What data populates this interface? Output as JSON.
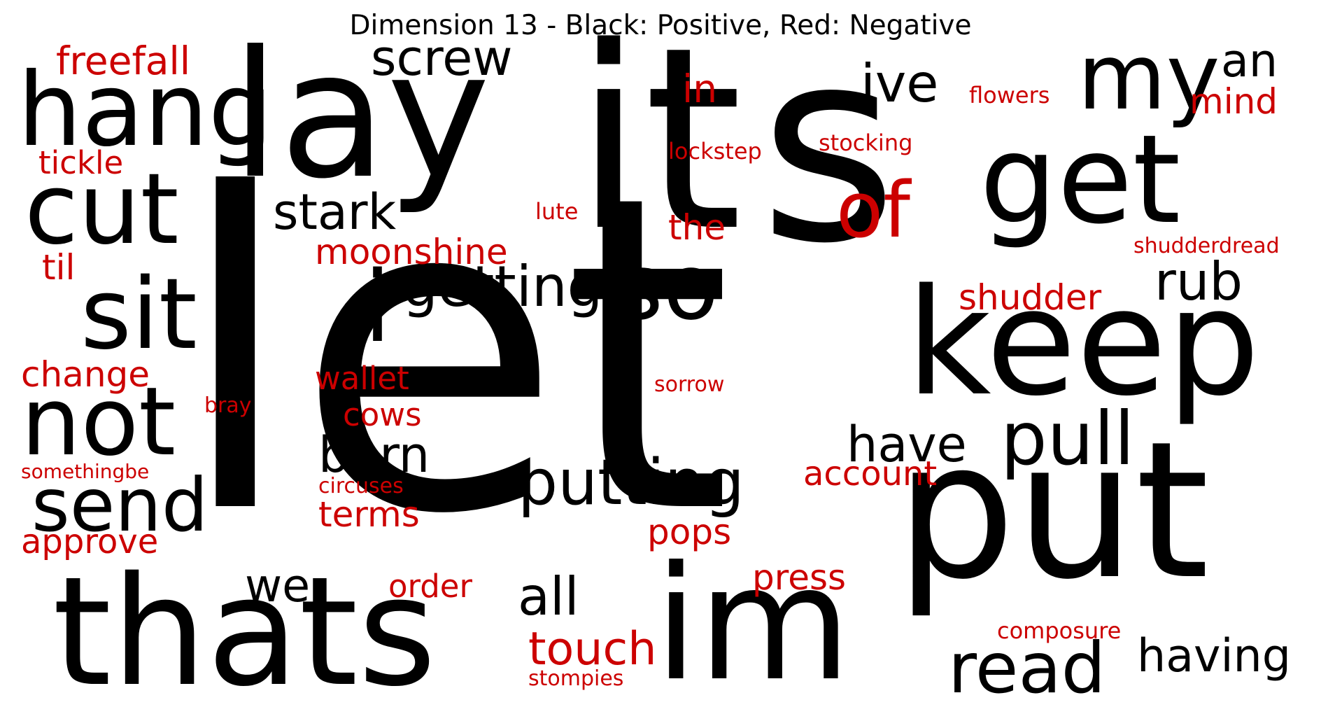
{
  "title": "Dimension 13 - Black: Positive, Red: Negative",
  "colors": {
    "positive": "#000000",
    "negative": "#cc0000"
  },
  "words": [
    {
      "text": "let",
      "sign": "positive"
    },
    {
      "text": "s",
      "sign": "positive"
    },
    {
      "text": "it",
      "sign": "positive"
    },
    {
      "text": "lay",
      "sign": "positive"
    },
    {
      "text": "put",
      "sign": "positive"
    },
    {
      "text": "keep",
      "sign": "positive"
    },
    {
      "text": "thats",
      "sign": "positive"
    },
    {
      "text": "im",
      "sign": "positive"
    },
    {
      "text": "get",
      "sign": "positive"
    },
    {
      "text": "hang",
      "sign": "positive"
    },
    {
      "text": "cut",
      "sign": "positive"
    },
    {
      "text": "sit",
      "sign": "positive"
    },
    {
      "text": "not",
      "sign": "positive"
    },
    {
      "text": "my",
      "sign": "positive"
    },
    {
      "text": "so",
      "sign": "positive"
    },
    {
      "text": "i",
      "sign": "positive"
    },
    {
      "text": "send",
      "sign": "positive"
    },
    {
      "text": "read",
      "sign": "positive"
    },
    {
      "text": "pull",
      "sign": "positive"
    },
    {
      "text": "putting",
      "sign": "positive"
    },
    {
      "text": "getting",
      "sign": "positive"
    },
    {
      "text": "stark",
      "sign": "positive"
    },
    {
      "text": "screw",
      "sign": "positive"
    },
    {
      "text": "ive",
      "sign": "positive"
    },
    {
      "text": "an",
      "sign": "positive"
    },
    {
      "text": "rub",
      "sign": "positive"
    },
    {
      "text": "born",
      "sign": "positive"
    },
    {
      "text": "have",
      "sign": "positive"
    },
    {
      "text": "having",
      "sign": "positive"
    },
    {
      "text": "all",
      "sign": "positive"
    },
    {
      "text": "we",
      "sign": "positive"
    },
    {
      "text": "of",
      "sign": "negative"
    },
    {
      "text": "freefall",
      "sign": "negative"
    },
    {
      "text": "in",
      "sign": "negative"
    },
    {
      "text": "mind",
      "sign": "negative"
    },
    {
      "text": "flowers",
      "sign": "negative"
    },
    {
      "text": "tickle",
      "sign": "negative"
    },
    {
      "text": "lockstep",
      "sign": "negative"
    },
    {
      "text": "stocking",
      "sign": "negative"
    },
    {
      "text": "lute",
      "sign": "negative"
    },
    {
      "text": "the",
      "sign": "negative"
    },
    {
      "text": "moonshine",
      "sign": "negative"
    },
    {
      "text": "til",
      "sign": "negative"
    },
    {
      "text": "shudderdread",
      "sign": "negative"
    },
    {
      "text": "shudder",
      "sign": "negative"
    },
    {
      "text": "change",
      "sign": "negative"
    },
    {
      "text": "wallet",
      "sign": "negative"
    },
    {
      "text": "sorrow",
      "sign": "negative"
    },
    {
      "text": "bray",
      "sign": "negative"
    },
    {
      "text": "cows",
      "sign": "negative"
    },
    {
      "text": "somethingbe",
      "sign": "negative"
    },
    {
      "text": "account",
      "sign": "negative"
    },
    {
      "text": "circuses",
      "sign": "negative"
    },
    {
      "text": "terms",
      "sign": "negative"
    },
    {
      "text": "approve",
      "sign": "negative"
    },
    {
      "text": "pops",
      "sign": "negative"
    },
    {
      "text": "press",
      "sign": "negative"
    },
    {
      "text": "order",
      "sign": "negative"
    },
    {
      "text": "composure",
      "sign": "negative"
    },
    {
      "text": "touch",
      "sign": "negative"
    },
    {
      "text": "stompies",
      "sign": "negative"
    }
  ]
}
